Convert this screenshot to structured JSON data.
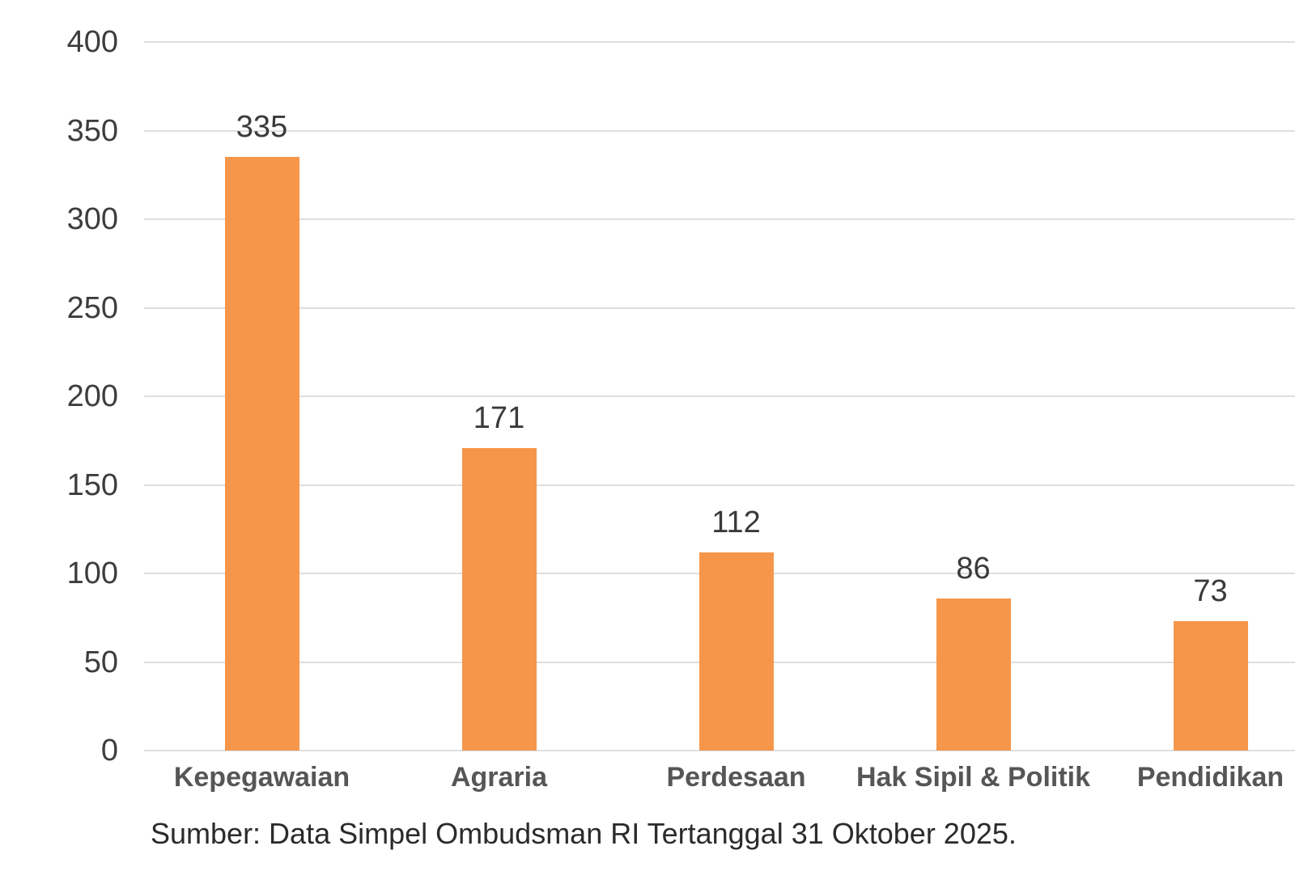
{
  "chart_data": {
    "type": "bar",
    "title": "",
    "xlabel": "",
    "ylabel": "",
    "categories": [
      "Kepegawaian",
      "Agraria",
      "Perdesaan",
      "Hak Sipil & Politik",
      "Pendidikan"
    ],
    "values": [
      335,
      171,
      112,
      86,
      73
    ],
    "value_labels": [
      "335",
      "171",
      "112",
      "86",
      "73"
    ],
    "ylim": [
      0,
      400
    ],
    "yticks": [
      0,
      50,
      100,
      150,
      200,
      250,
      300,
      350,
      400
    ],
    "ytick_labels": [
      "0",
      "50",
      "100",
      "150",
      "200",
      "250",
      "300",
      "350",
      "400"
    ],
    "grid": true,
    "legend": false,
    "colors": {
      "bar": "#F6964A",
      "gridline": "#DEDEDE",
      "tick_text": "#3D3D3D",
      "value_text": "#3A3A3A",
      "category_text": "#565656",
      "source_text": "#2B2B2B",
      "background": "#FFFFFF"
    },
    "source_note": "Sumber: Data Simpel Ombudsman RI Tertanggal 31 Oktober 2025."
  }
}
